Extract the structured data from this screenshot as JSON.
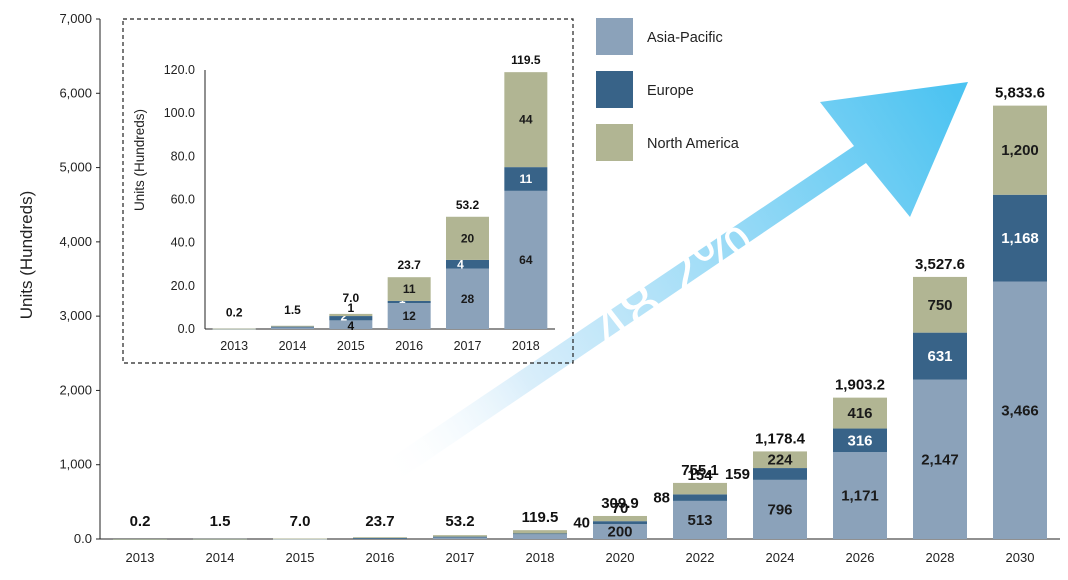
{
  "chart_data": [
    {
      "type": "bar",
      "stacked": true,
      "ylabel": "Units (Hundreds)",
      "ylim": [
        0,
        7000
      ],
      "yticks": [
        "0.0",
        "1,000",
        "2,000",
        "3,000",
        "4,000",
        "5,000",
        "6,000",
        "7,000"
      ],
      "categories": [
        "2013",
        "2014",
        "2015",
        "2016",
        "2017",
        "2018",
        "2020",
        "2022",
        "2024",
        "2026",
        "2028",
        "2030"
      ],
      "series": [
        {
          "name": "Asia-Pacific",
          "values": [
            0.1,
            0.8,
            4,
            12,
            28,
            64,
            200,
            513,
            796,
            1171,
            2147,
            3466
          ],
          "labels": [
            "",
            "",
            "",
            "",
            "",
            "",
            "200",
            "513",
            "796",
            "1,171",
            "2,147",
            "3,466"
          ]
        },
        {
          "name": "Europe",
          "values": [
            0.05,
            0.3,
            2,
            1,
            4,
            11,
            40,
            88,
            159,
            316,
            631,
            1168
          ],
          "labels": [
            "",
            "",
            "",
            "",
            "",
            "",
            "40",
            "88",
            "159",
            "316",
            "631",
            "1,168"
          ]
        },
        {
          "name": "North America",
          "values": [
            0.05,
            0.4,
            1,
            11,
            20,
            44,
            70,
            154,
            224,
            416,
            750,
            1200
          ],
          "labels": [
            "",
            "",
            "",
            "",
            "",
            "",
            "70",
            "154",
            "224",
            "416",
            "750",
            "1,200"
          ]
        }
      ],
      "totals": [
        "0.2",
        "1.5",
        "7.0",
        "23.7",
        "53.2",
        "119.5",
        "309.9",
        "755.1",
        "1,178.4",
        "1,903.2",
        "3,527.6",
        "5,833.6"
      ],
      "legend": {
        "position": "top-right"
      },
      "colors": {
        "Asia-Pacific": "#8ba2ba",
        "Europe": "#386388",
        "North America": "#b1b593"
      },
      "annotation": "48.2%"
    },
    {
      "type": "bar",
      "stacked": true,
      "inset": true,
      "ylabel": "Units (Hundreds)",
      "ylim": [
        0,
        120
      ],
      "yticks": [
        "0.0",
        "20.0",
        "40.0",
        "60.0",
        "80.0",
        "100.0",
        "120.0"
      ],
      "categories": [
        "2013",
        "2014",
        "2015",
        "2016",
        "2017",
        "2018"
      ],
      "series": [
        {
          "name": "Asia-Pacific",
          "values": [
            0.1,
            0.8,
            4,
            12,
            28,
            64
          ],
          "labels": [
            "",
            "",
            "4",
            "12",
            "28",
            "64"
          ]
        },
        {
          "name": "Europe",
          "values": [
            0.05,
            0.3,
            2,
            1,
            4,
            11
          ],
          "labels": [
            "",
            "",
            "2",
            "1",
            "4",
            "11"
          ]
        },
        {
          "name": "North America",
          "values": [
            0.05,
            0.4,
            1,
            11,
            20,
            44
          ],
          "labels": [
            "",
            "",
            "1",
            "11",
            "20",
            "44"
          ]
        }
      ],
      "totals": [
        "0.2",
        "1.5",
        "7.0",
        "23.7",
        "53.2",
        "119.5"
      ]
    }
  ]
}
